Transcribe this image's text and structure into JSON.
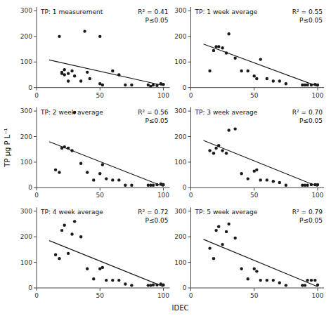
{
  "chart_data": [
    {
      "type": "scatter",
      "title": "TP: 1 measurement",
      "annotations": [
        "R² = 0.41",
        "P≤0.05"
      ],
      "xlabel": "IDEC",
      "ylabel": "TP µg P L⁻¹",
      "xlim": [
        0,
        105
      ],
      "ylim": [
        0,
        315
      ],
      "xticks": [
        0,
        50,
        100
      ],
      "yticks": [
        0,
        100,
        200,
        300
      ],
      "grid": false,
      "series": [
        {
          "type": "scatter",
          "color": "#1a1a1a",
          "x": [
            18,
            20,
            20,
            22,
            22,
            25,
            25,
            28,
            30,
            35,
            38,
            40,
            42,
            50,
            50,
            52,
            60,
            65,
            70,
            75,
            88,
            90,
            92,
            95,
            98,
            100
          ],
          "values": [
            200,
            55,
            60,
            70,
            50,
            55,
            25,
            65,
            45,
            25,
            220,
            60,
            35,
            200,
            15,
            10,
            65,
            50,
            10,
            10,
            10,
            5,
            10,
            8,
            15,
            12
          ]
        },
        {
          "type": "line",
          "color": "#1a1a1a",
          "x": [
            10,
            100
          ],
          "values": [
            108,
            8
          ]
        }
      ]
    },
    {
      "type": "scatter",
      "title": "TP: 1 week average",
      "annotations": [
        "R² = 0.55",
        "P≤0.05"
      ],
      "xlim": [
        0,
        105
      ],
      "ylim": [
        0,
        315
      ],
      "xticks": [
        0,
        50,
        100
      ],
      "yticks": [
        0,
        100,
        200,
        300
      ],
      "grid": false,
      "series": [
        {
          "type": "scatter",
          "color": "#1a1a1a",
          "x": [
            15,
            18,
            20,
            22,
            25,
            28,
            30,
            35,
            40,
            45,
            50,
            52,
            55,
            60,
            65,
            70,
            75,
            88,
            90,
            92,
            95,
            98,
            100
          ],
          "values": [
            65,
            145,
            160,
            160,
            155,
            135,
            210,
            115,
            65,
            65,
            45,
            35,
            110,
            35,
            25,
            25,
            15,
            10,
            10,
            10,
            10,
            12,
            10
          ]
        },
        {
          "type": "line",
          "color": "#1a1a1a",
          "x": [
            10,
            100
          ],
          "values": [
            170,
            5
          ]
        }
      ]
    },
    {
      "type": "scatter",
      "title": "TP: 2 week average",
      "annotations": [
        "R² = 0.56",
        "P≤0.05"
      ],
      "xlim": [
        0,
        105
      ],
      "ylim": [
        0,
        315
      ],
      "xticks": [
        0,
        50,
        100
      ],
      "yticks": [
        0,
        100,
        200,
        300
      ],
      "grid": false,
      "series": [
        {
          "type": "scatter",
          "color": "#1a1a1a",
          "x": [
            15,
            18,
            20,
            22,
            25,
            28,
            30,
            35,
            40,
            45,
            50,
            52,
            55,
            60,
            65,
            70,
            75,
            88,
            90,
            92,
            95,
            98,
            100
          ],
          "values": [
            70,
            60,
            155,
            160,
            155,
            145,
            295,
            95,
            60,
            30,
            55,
            90,
            35,
            30,
            30,
            10,
            10,
            10,
            10,
            10,
            12,
            15,
            12
          ]
        },
        {
          "type": "line",
          "color": "#1a1a1a",
          "x": [
            10,
            100
          ],
          "values": [
            180,
            5
          ]
        }
      ]
    },
    {
      "type": "scatter",
      "title": "TP: 3 week average",
      "annotations": [
        "R² = 0.70",
        "P≤0.05"
      ],
      "xlim": [
        0,
        105
      ],
      "ylim": [
        0,
        315
      ],
      "xticks": [
        0,
        50,
        100
      ],
      "yticks": [
        0,
        100,
        200,
        300
      ],
      "grid": false,
      "series": [
        {
          "type": "scatter",
          "color": "#1a1a1a",
          "x": [
            15,
            18,
            20,
            22,
            25,
            28,
            30,
            35,
            40,
            45,
            50,
            52,
            55,
            60,
            65,
            70,
            75,
            88,
            90,
            92,
            95,
            98,
            100
          ],
          "values": [
            145,
            135,
            155,
            165,
            145,
            135,
            225,
            230,
            55,
            35,
            65,
            70,
            30,
            30,
            25,
            20,
            10,
            10,
            10,
            10,
            12,
            12,
            12
          ]
        },
        {
          "type": "line",
          "color": "#1a1a1a",
          "x": [
            10,
            100
          ],
          "values": [
            185,
            5
          ]
        }
      ]
    },
    {
      "type": "scatter",
      "title": "TP: 4 week average",
      "annotations": [
        "R² = 0.72",
        "P≤0.05"
      ],
      "xlim": [
        0,
        105
      ],
      "ylim": [
        0,
        315
      ],
      "xticks": [
        0,
        50,
        100
      ],
      "yticks": [
        0,
        100,
        200,
        300
      ],
      "grid": false,
      "series": [
        {
          "type": "scatter",
          "color": "#1a1a1a",
          "x": [
            15,
            18,
            20,
            22,
            25,
            28,
            30,
            35,
            40,
            45,
            50,
            52,
            55,
            60,
            65,
            70,
            75,
            88,
            90,
            92,
            95,
            98,
            100
          ],
          "values": [
            130,
            115,
            225,
            245,
            135,
            210,
            260,
            200,
            75,
            35,
            75,
            80,
            30,
            30,
            30,
            15,
            10,
            10,
            10,
            12,
            12,
            15,
            12
          ]
        },
        {
          "type": "line",
          "color": "#1a1a1a",
          "x": [
            10,
            100
          ],
          "values": [
            185,
            5
          ]
        }
      ]
    },
    {
      "type": "scatter",
      "title": "TP: 5 week average",
      "annotations": [
        "R² = 0.79",
        "P≤0.05"
      ],
      "xlim": [
        0,
        105
      ],
      "ylim": [
        0,
        315
      ],
      "xticks": [
        0,
        50,
        100
      ],
      "yticks": [
        0,
        100,
        200,
        300
      ],
      "grid": false,
      "series": [
        {
          "type": "scatter",
          "color": "#1a1a1a",
          "x": [
            15,
            18,
            20,
            22,
            25,
            28,
            30,
            35,
            40,
            45,
            50,
            52,
            55,
            60,
            65,
            70,
            75,
            88,
            90,
            92,
            95,
            98,
            100
          ],
          "values": [
            155,
            115,
            225,
            240,
            170,
            220,
            250,
            195,
            75,
            35,
            75,
            65,
            30,
            30,
            30,
            20,
            10,
            10,
            10,
            30,
            30,
            30,
            12
          ]
        },
        {
          "type": "line",
          "color": "#1a1a1a",
          "x": [
            10,
            100
          ],
          "values": [
            190,
            5
          ]
        }
      ]
    }
  ]
}
